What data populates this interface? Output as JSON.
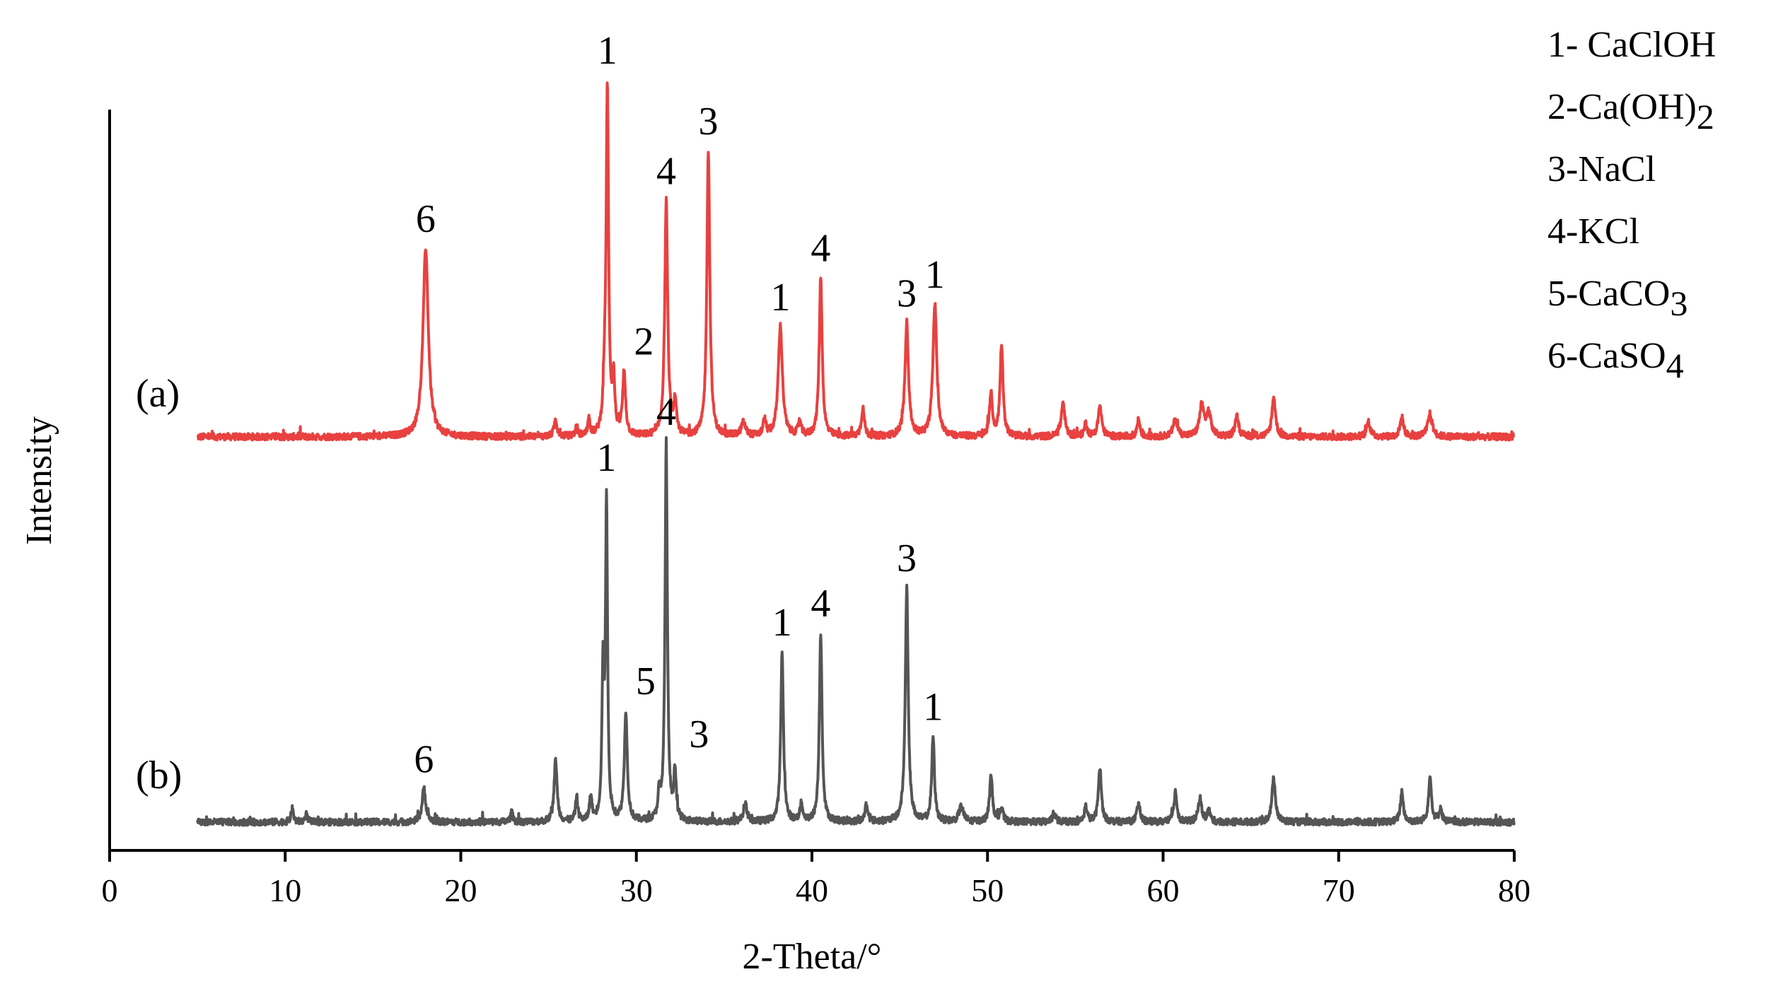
{
  "chart_data": {
    "type": "line",
    "title": "",
    "xlabel": "2-Theta/°",
    "ylabel": "Intensity",
    "xlim": [
      0,
      80
    ],
    "x_ticks": [
      0,
      10,
      20,
      30,
      40,
      50,
      60,
      70,
      80
    ],
    "y_ticks": [],
    "grid": false,
    "legend": {
      "placement": "top-right",
      "entries": [
        {
          "key": "1",
          "text": "1- CaClOH"
        },
        {
          "key": "2",
          "text": "2-Ca(OH)",
          "sub": "2"
        },
        {
          "key": "3",
          "text": "3-NaCl"
        },
        {
          "key": "4",
          "text": "4-KCl"
        },
        {
          "key": "5",
          "text": "5-CaCO",
          "sub": "3"
        },
        {
          "key": "6",
          "text": "6-CaSO",
          "sub": "4"
        }
      ]
    },
    "series": [
      {
        "label": "(a)",
        "color": "#e8413f",
        "x_start": 5,
        "x_end": 80,
        "baseline": 0.0,
        "peaks": [
          {
            "x": 18.0,
            "y": 1.0,
            "w": 0.18,
            "label": "6"
          },
          {
            "x": 25.4,
            "y": 0.09,
            "w": 0.1
          },
          {
            "x": 26.6,
            "y": 0.05,
            "w": 0.08
          },
          {
            "x": 27.3,
            "y": 0.08,
            "w": 0.08
          },
          {
            "x": 28.2,
            "y": 0.22,
            "w": 0.1
          },
          {
            "x": 28.35,
            "y": 1.8,
            "w": 0.08,
            "label": "1"
          },
          {
            "x": 28.7,
            "y": 0.28,
            "w": 0.08
          },
          {
            "x": 29.3,
            "y": 0.33,
            "w": 0.1,
            "label": "2"
          },
          {
            "x": 31.7,
            "y": 1.24,
            "w": 0.1,
            "label": "4"
          },
          {
            "x": 32.2,
            "y": 0.16,
            "w": 0.1
          },
          {
            "x": 34.1,
            "y": 1.51,
            "w": 0.1,
            "label": "3"
          },
          {
            "x": 36.1,
            "y": 0.07,
            "w": 0.15
          },
          {
            "x": 37.3,
            "y": 0.08,
            "w": 0.1
          },
          {
            "x": 38.2,
            "y": 0.58,
            "w": 0.14,
            "label": "1"
          },
          {
            "x": 39.3,
            "y": 0.07,
            "w": 0.1
          },
          {
            "x": 40.5,
            "y": 0.84,
            "w": 0.1,
            "label": "4"
          },
          {
            "x": 42.9,
            "y": 0.15,
            "w": 0.1
          },
          {
            "x": 45.4,
            "y": 0.6,
            "w": 0.12,
            "label": "3"
          },
          {
            "x": 47.0,
            "y": 0.7,
            "w": 0.13,
            "label": "1"
          },
          {
            "x": 50.2,
            "y": 0.22,
            "w": 0.1
          },
          {
            "x": 50.8,
            "y": 0.49,
            "w": 0.1
          },
          {
            "x": 54.3,
            "y": 0.18,
            "w": 0.12
          },
          {
            "x": 55.6,
            "y": 0.07,
            "w": 0.1
          },
          {
            "x": 56.4,
            "y": 0.16,
            "w": 0.12
          },
          {
            "x": 58.6,
            "y": 0.09,
            "w": 0.1
          },
          {
            "x": 60.7,
            "y": 0.09,
            "w": 0.15
          },
          {
            "x": 62.2,
            "y": 0.16,
            "w": 0.15
          },
          {
            "x": 62.6,
            "y": 0.12,
            "w": 0.15
          },
          {
            "x": 64.2,
            "y": 0.11,
            "w": 0.12
          },
          {
            "x": 66.3,
            "y": 0.21,
            "w": 0.12
          },
          {
            "x": 71.7,
            "y": 0.08,
            "w": 0.12
          },
          {
            "x": 73.6,
            "y": 0.1,
            "w": 0.12
          },
          {
            "x": 75.2,
            "y": 0.12,
            "w": 0.15
          }
        ]
      },
      {
        "label": "(b)",
        "color": "#555555",
        "x_start": 5,
        "x_end": 80,
        "baseline": 0.0,
        "peaks": [
          {
            "x": 10.4,
            "y": 0.07,
            "w": 0.08
          },
          {
            "x": 11.2,
            "y": 0.04,
            "w": 0.08
          },
          {
            "x": 17.9,
            "y": 0.18,
            "w": 0.12,
            "label": "6"
          },
          {
            "x": 22.9,
            "y": 0.05,
            "w": 0.08
          },
          {
            "x": 25.4,
            "y": 0.33,
            "w": 0.1
          },
          {
            "x": 26.6,
            "y": 0.13,
            "w": 0.08
          },
          {
            "x": 27.4,
            "y": 0.13,
            "w": 0.08
          },
          {
            "x": 28.1,
            "y": 0.77,
            "w": 0.07
          },
          {
            "x": 28.3,
            "y": 1.68,
            "w": 0.07,
            "label": "1"
          },
          {
            "x": 29.4,
            "y": 0.58,
            "w": 0.1,
            "label": "5"
          },
          {
            "x": 31.3,
            "y": 0.13,
            "w": 0.08
          },
          {
            "x": 31.7,
            "y": 2.0,
            "w": 0.08,
            "label": "4"
          },
          {
            "x": 32.2,
            "y": 0.26,
            "w": 0.08,
            "label": "3"
          },
          {
            "x": 36.2,
            "y": 0.1,
            "w": 0.12
          },
          {
            "x": 38.3,
            "y": 0.9,
            "w": 0.09,
            "label": "1"
          },
          {
            "x": 39.4,
            "y": 0.09,
            "w": 0.1
          },
          {
            "x": 40.5,
            "y": 1.0,
            "w": 0.09,
            "label": "4"
          },
          {
            "x": 43.1,
            "y": 0.09,
            "w": 0.1
          },
          {
            "x": 45.4,
            "y": 1.24,
            "w": 0.1,
            "label": "3"
          },
          {
            "x": 46.9,
            "y": 0.45,
            "w": 0.09,
            "label": "1"
          },
          {
            "x": 48.5,
            "y": 0.08,
            "w": 0.15
          },
          {
            "x": 50.2,
            "y": 0.24,
            "w": 0.1
          },
          {
            "x": 50.8,
            "y": 0.07,
            "w": 0.1
          },
          {
            "x": 53.8,
            "y": 0.04,
            "w": 0.12
          },
          {
            "x": 55.6,
            "y": 0.08,
            "w": 0.1
          },
          {
            "x": 56.4,
            "y": 0.29,
            "w": 0.1
          },
          {
            "x": 58.6,
            "y": 0.1,
            "w": 0.1
          },
          {
            "x": 60.7,
            "y": 0.16,
            "w": 0.1
          },
          {
            "x": 62.1,
            "y": 0.12,
            "w": 0.12
          },
          {
            "x": 62.6,
            "y": 0.06,
            "w": 0.1
          },
          {
            "x": 66.3,
            "y": 0.23,
            "w": 0.12
          },
          {
            "x": 73.6,
            "y": 0.16,
            "w": 0.1
          },
          {
            "x": 75.2,
            "y": 0.24,
            "w": 0.1
          },
          {
            "x": 75.8,
            "y": 0.07,
            "w": 0.1
          }
        ]
      }
    ]
  }
}
